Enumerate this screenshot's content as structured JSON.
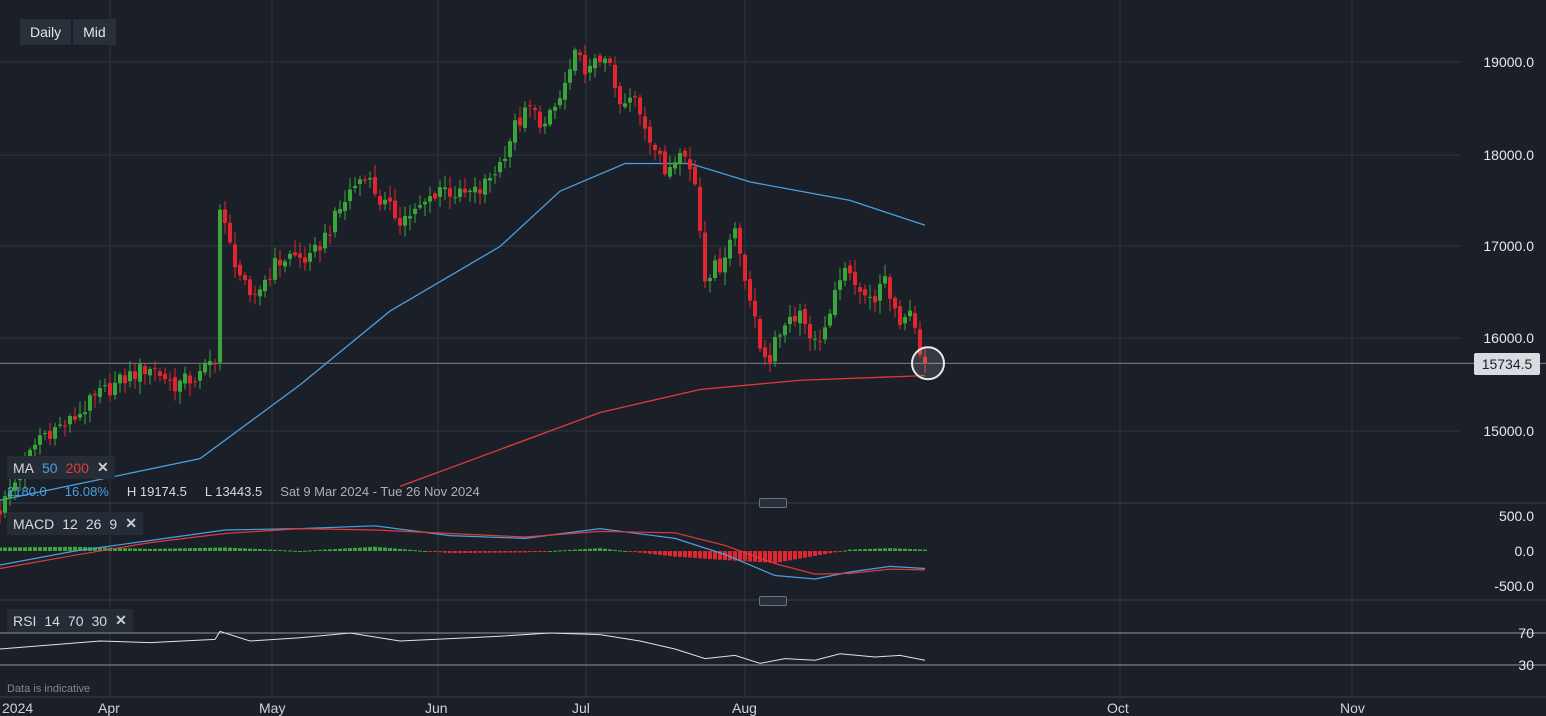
{
  "toolbar": {
    "period": "Daily",
    "price_type": "Mid"
  },
  "price_axis": [
    "19000.0",
    "18000.0",
    "17000.0",
    "16000.0",
    "15000.0"
  ],
  "current_price": "15734.5",
  "time_axis": [
    "2024",
    "Apr",
    "May",
    "Jun",
    "Jul",
    "Aug",
    "Oct",
    "Nov"
  ],
  "ma_legend": {
    "label": "MA",
    "p1": "50",
    "p2": "200",
    "p1_color": "#4a9fe0",
    "p2_color": "#e03a3a"
  },
  "stats": {
    "range": "2180.0",
    "pct": "16.08%",
    "high": "H 19174.5",
    "low": "L 13443.5",
    "dates": "Sat 9 Mar 2024 - Tue 26 Nov 2024"
  },
  "macd_legend": {
    "label": "MACD",
    "a": "12",
    "b": "26",
    "c": "9"
  },
  "macd_axis": [
    "500.0",
    "0.0",
    "-500.0"
  ],
  "rsi_legend": {
    "label": "RSI",
    "a": "14",
    "b": "70",
    "c": "30"
  },
  "rsi_axis": [
    "70",
    "30"
  ],
  "disclaimer": "Data is indicative",
  "chart_data": {
    "type": "candlestick",
    "y_range": [
      14300,
      19600
    ],
    "x_domain": [
      0,
      196
    ],
    "anchors": [
      {
        "d": 0,
        "c": 14150
      },
      {
        "d": 8,
        "c": 14950
      },
      {
        "d": 14,
        "c": 15100
      },
      {
        "d": 20,
        "c": 15400
      },
      {
        "d": 26,
        "c": 15600
      },
      {
        "d": 30,
        "c": 15700
      },
      {
        "d": 35,
        "c": 15500
      },
      {
        "d": 40,
        "c": 15600
      },
      {
        "d": 43,
        "c": 15800
      },
      {
        "d": 44,
        "c": 17400
      },
      {
        "d": 46,
        "c": 17000
      },
      {
        "d": 50,
        "c": 16400
      },
      {
        "d": 55,
        "c": 16800
      },
      {
        "d": 58,
        "c": 16900
      },
      {
        "d": 62,
        "c": 16850
      },
      {
        "d": 66,
        "c": 17200
      },
      {
        "d": 70,
        "c": 17600
      },
      {
        "d": 73,
        "c": 17800
      },
      {
        "d": 76,
        "c": 17500
      },
      {
        "d": 80,
        "c": 17300
      },
      {
        "d": 84,
        "c": 17400
      },
      {
        "d": 88,
        "c": 17650
      },
      {
        "d": 92,
        "c": 17550
      },
      {
        "d": 96,
        "c": 17600
      },
      {
        "d": 100,
        "c": 17900
      },
      {
        "d": 103,
        "c": 18300
      },
      {
        "d": 106,
        "c": 18500
      },
      {
        "d": 109,
        "c": 18300
      },
      {
        "d": 112,
        "c": 18600
      },
      {
        "d": 115,
        "c": 19050
      },
      {
        "d": 118,
        "c": 18900
      },
      {
        "d": 121,
        "c": 19100
      },
      {
        "d": 124,
        "c": 18500
      },
      {
        "d": 127,
        "c": 18600
      },
      {
        "d": 130,
        "c": 18200
      },
      {
        "d": 133,
        "c": 17800
      },
      {
        "d": 136,
        "c": 18100
      },
      {
        "d": 139,
        "c": 17700
      },
      {
        "d": 141,
        "c": 16700
      },
      {
        "d": 144,
        "c": 16800
      },
      {
        "d": 147,
        "c": 17200
      },
      {
        "d": 149,
        "c": 16700
      },
      {
        "d": 152,
        "c": 15900
      },
      {
        "d": 154,
        "c": 15800
      },
      {
        "d": 157,
        "c": 16200
      },
      {
        "d": 160,
        "c": 16300
      },
      {
        "d": 163,
        "c": 15950
      },
      {
        "d": 166,
        "c": 16200
      },
      {
        "d": 168,
        "c": 16700
      },
      {
        "d": 171,
        "c": 16650
      },
      {
        "d": 174,
        "c": 16400
      },
      {
        "d": 177,
        "c": 16600
      },
      {
        "d": 180,
        "c": 16200
      },
      {
        "d": 182,
        "c": 16350
      },
      {
        "d": 184,
        "c": 15800
      },
      {
        "d": 185,
        "c": 15734.5
      }
    ],
    "ma50": [
      [
        0,
        14250
      ],
      [
        40,
        14700
      ],
      [
        60,
        15500
      ],
      [
        78,
        16300
      ],
      [
        100,
        17000
      ],
      [
        112,
        17600
      ],
      [
        125,
        17900
      ],
      [
        138,
        17900
      ],
      [
        150,
        17700
      ],
      [
        170,
        17500
      ],
      [
        185,
        17230
      ]
    ],
    "ma200": [
      [
        80,
        14400
      ],
      [
        100,
        14800
      ],
      [
        120,
        15200
      ],
      [
        140,
        15450
      ],
      [
        160,
        15550
      ],
      [
        185,
        15600
      ]
    ],
    "macd_range": [
      -650,
      650
    ],
    "macd": [
      [
        0,
        -200
      ],
      [
        15,
        0
      ],
      [
        30,
        150
      ],
      [
        45,
        300
      ],
      [
        60,
        320
      ],
      [
        75,
        360
      ],
      [
        90,
        220
      ],
      [
        105,
        180
      ],
      [
        120,
        320
      ],
      [
        135,
        180
      ],
      [
        145,
        -50
      ],
      [
        155,
        -350
      ],
      [
        163,
        -400
      ],
      [
        170,
        -300
      ],
      [
        178,
        -220
      ],
      [
        185,
        -250
      ]
    ],
    "macd_signal": [
      [
        0,
        -250
      ],
      [
        15,
        -60
      ],
      [
        30,
        120
      ],
      [
        45,
        250
      ],
      [
        60,
        320
      ],
      [
        75,
        300
      ],
      [
        90,
        250
      ],
      [
        105,
        200
      ],
      [
        120,
        280
      ],
      [
        135,
        260
      ],
      [
        145,
        80
      ],
      [
        155,
        -180
      ],
      [
        163,
        -330
      ],
      [
        170,
        -320
      ],
      [
        178,
        -260
      ],
      [
        185,
        -270
      ]
    ],
    "rsi": [
      [
        0,
        50
      ],
      [
        10,
        55
      ],
      [
        20,
        60
      ],
      [
        30,
        58
      ],
      [
        43,
        62
      ],
      [
        44,
        72
      ],
      [
        50,
        60
      ],
      [
        60,
        64
      ],
      [
        70,
        70
      ],
      [
        80,
        60
      ],
      [
        90,
        63
      ],
      [
        100,
        66
      ],
      [
        110,
        70
      ],
      [
        120,
        68
      ],
      [
        128,
        60
      ],
      [
        135,
        50
      ],
      [
        141,
        38
      ],
      [
        147,
        42
      ],
      [
        152,
        32
      ],
      [
        157,
        38
      ],
      [
        163,
        36
      ],
      [
        168,
        44
      ],
      [
        175,
        40
      ],
      [
        180,
        42
      ],
      [
        185,
        36
      ]
    ]
  }
}
